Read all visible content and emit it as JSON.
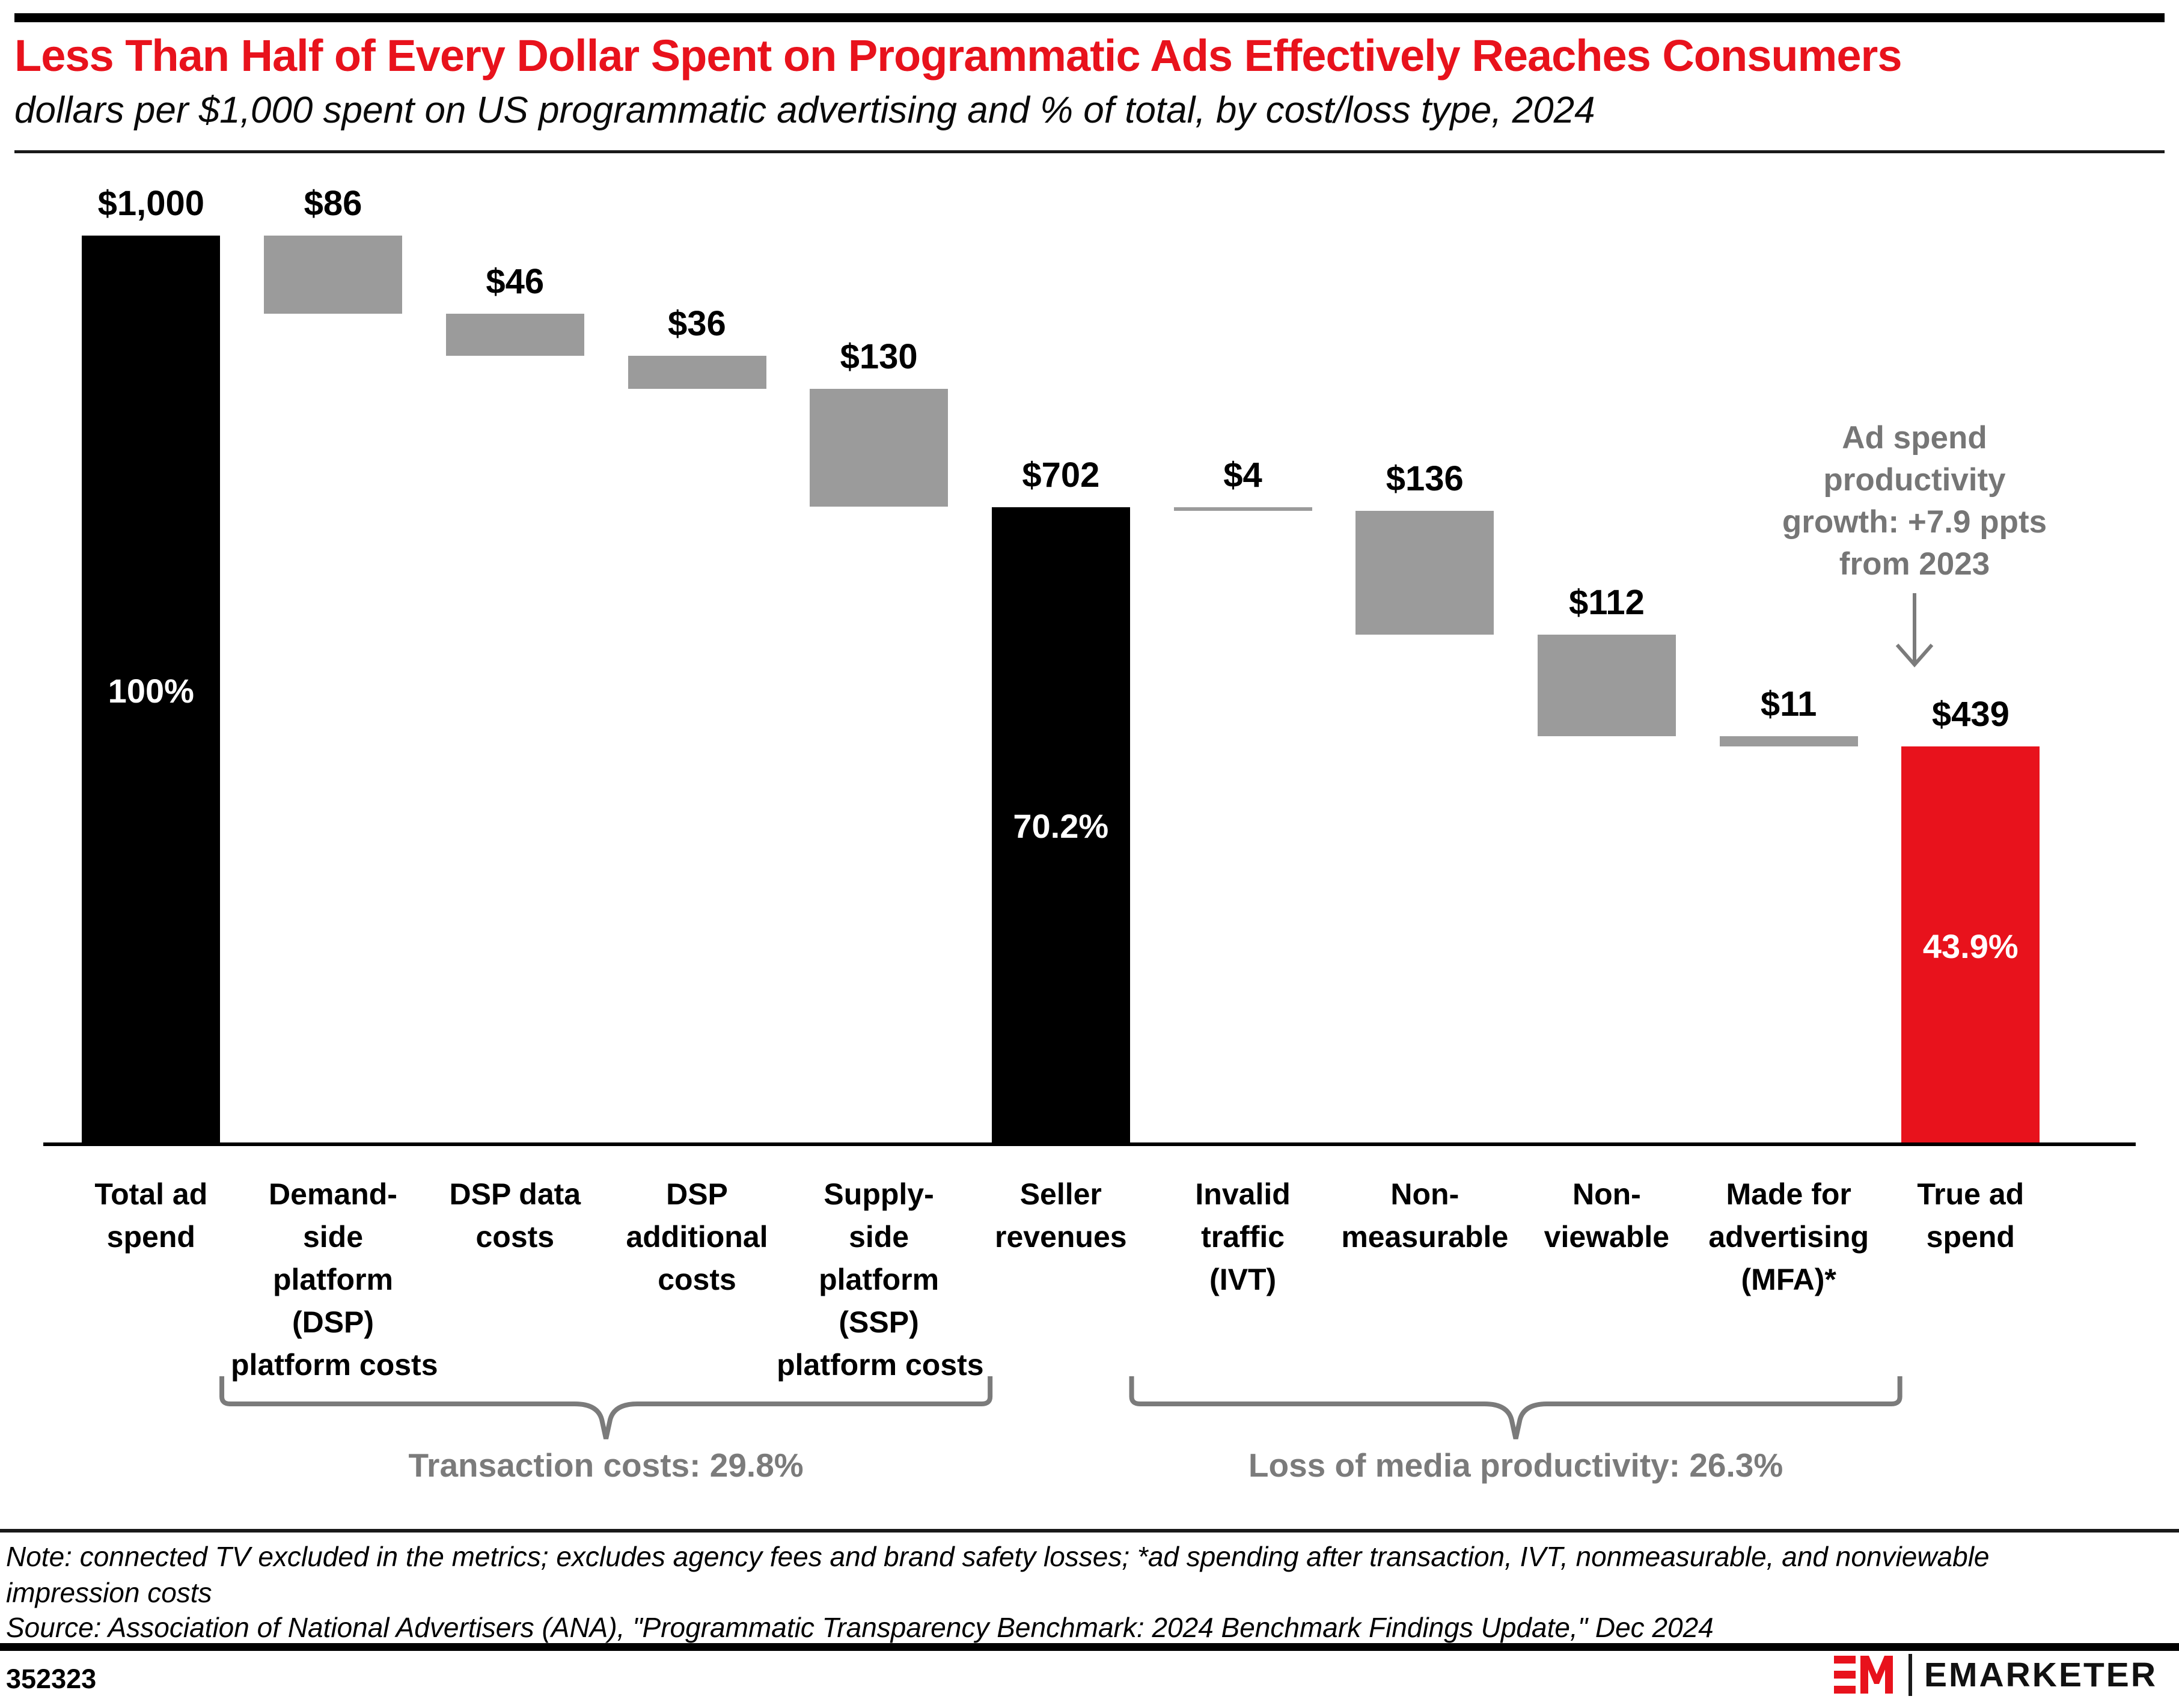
{
  "header": {
    "title": "Less Than Half of Every Dollar Spent on Programmatic Ads Effectively Reaches Consumers",
    "subtitle": "dollars per $1,000 spent on US programmatic advertising and % of total, by cost/loss type, 2024",
    "accent_color": "#e8121c"
  },
  "chart_data": {
    "type": "bar",
    "subtype": "waterfall",
    "title": "Less Than Half of Every Dollar Spent on Programmatic Ads Effectively Reaches Consumers",
    "unit": "dollars per $1,000 spent",
    "ylim": [
      0,
      1000
    ],
    "grid": false,
    "categories": [
      "Total ad spend",
      "Demand-side platform (DSP) platform costs",
      "DSP data costs",
      "DSP additional costs",
      "Supply-side platform (SSP) platform costs",
      "Seller revenues",
      "Invalid traffic (IVT)",
      "Non-measurable",
      "Non-viewable",
      "Made for advertising (MFA)*",
      "True ad spend"
    ],
    "bars": [
      {
        "label": "Total ad spend",
        "label_lines": [
          "Total ad",
          "spend"
        ],
        "value": 1000,
        "value_label": "$1,000",
        "start": 0,
        "end": 1000,
        "role": "total",
        "pct_label": "100%"
      },
      {
        "label": "Demand-side platform (DSP) platform costs",
        "label_lines": [
          "Demand-",
          "side",
          "platform",
          "(DSP)",
          "platform costs"
        ],
        "value": 86,
        "value_label": "$86",
        "start": 1000,
        "end": 914,
        "role": "cost",
        "pct_label": ""
      },
      {
        "label": "DSP data costs",
        "label_lines": [
          "DSP data",
          "costs"
        ],
        "value": 46,
        "value_label": "$46",
        "start": 914,
        "end": 868,
        "role": "cost",
        "pct_label": ""
      },
      {
        "label": "DSP additional costs",
        "label_lines": [
          "DSP",
          "additional",
          "costs"
        ],
        "value": 36,
        "value_label": "$36",
        "start": 868,
        "end": 832,
        "role": "cost",
        "pct_label": ""
      },
      {
        "label": "Supply-side platform (SSP) platform costs",
        "label_lines": [
          "Supply-",
          "side",
          "platform",
          "(SSP)",
          "platform costs"
        ],
        "value": 130,
        "value_label": "$130",
        "start": 832,
        "end": 702,
        "role": "cost",
        "pct_label": ""
      },
      {
        "label": "Seller revenues",
        "label_lines": [
          "Seller",
          "revenues"
        ],
        "value": 702,
        "value_label": "$702",
        "start": 702,
        "end": 0,
        "role": "total",
        "pct_label": "70.2%"
      },
      {
        "label": "Invalid traffic (IVT)",
        "label_lines": [
          "Invalid",
          "traffic",
          "(IVT)"
        ],
        "value": 4,
        "value_label": "$4",
        "start": 702,
        "end": 698,
        "role": "cost",
        "pct_label": ""
      },
      {
        "label": "Non-measurable",
        "label_lines": [
          "Non-",
          "measurable"
        ],
        "value": 136,
        "value_label": "$136",
        "start": 698,
        "end": 562,
        "role": "cost",
        "pct_label": ""
      },
      {
        "label": "Non-viewable",
        "label_lines": [
          "Non-",
          "viewable"
        ],
        "value": 112,
        "value_label": "$112",
        "start": 562,
        "end": 450,
        "role": "cost",
        "pct_label": ""
      },
      {
        "label": "Made for advertising (MFA)*",
        "label_lines": [
          "Made for",
          "advertising",
          "(MFA)*"
        ],
        "value": 11,
        "value_label": "$11",
        "start": 450,
        "end": 439,
        "role": "cost",
        "pct_label": ""
      },
      {
        "label": "True ad spend",
        "label_lines": [
          "True ad",
          "spend"
        ],
        "value": 439,
        "value_label": "$439",
        "start": 439,
        "end": 0,
        "role": "final",
        "pct_label": "43.9%"
      }
    ],
    "colors": {
      "total": "#000000",
      "cost": "#9b9b9b",
      "final": "#e8121c",
      "bracket": "#7b7b7b",
      "annotation": "#767676"
    },
    "annotation": {
      "text": "Ad spend productivity growth: +7.9 ppts from 2023",
      "lines": [
        "Ad spend",
        "productivity",
        "growth: +7.9 ppts",
        "from 2023"
      ]
    },
    "brackets": [
      {
        "label": "Transaction costs: 29.8%",
        "from_index": 1,
        "to_index": 4
      },
      {
        "label": "Loss of media productivity: 26.3%",
        "from_index": 6,
        "to_index": 9
      }
    ]
  },
  "footer": {
    "note_lines": [
      "Note: connected TV excluded in the metrics; excludes agency fees and brand safety losses; *ad spending after transaction, IVT, nonmeasurable, and nonviewable",
      "impression costs"
    ],
    "source": "Source: Association of National Advertisers (ANA), \"Programmatic Transparency Benchmark: 2024 Benchmark Findings Update,\" Dec 2024",
    "chart_id": "352323",
    "brand": "EMARKETER"
  }
}
